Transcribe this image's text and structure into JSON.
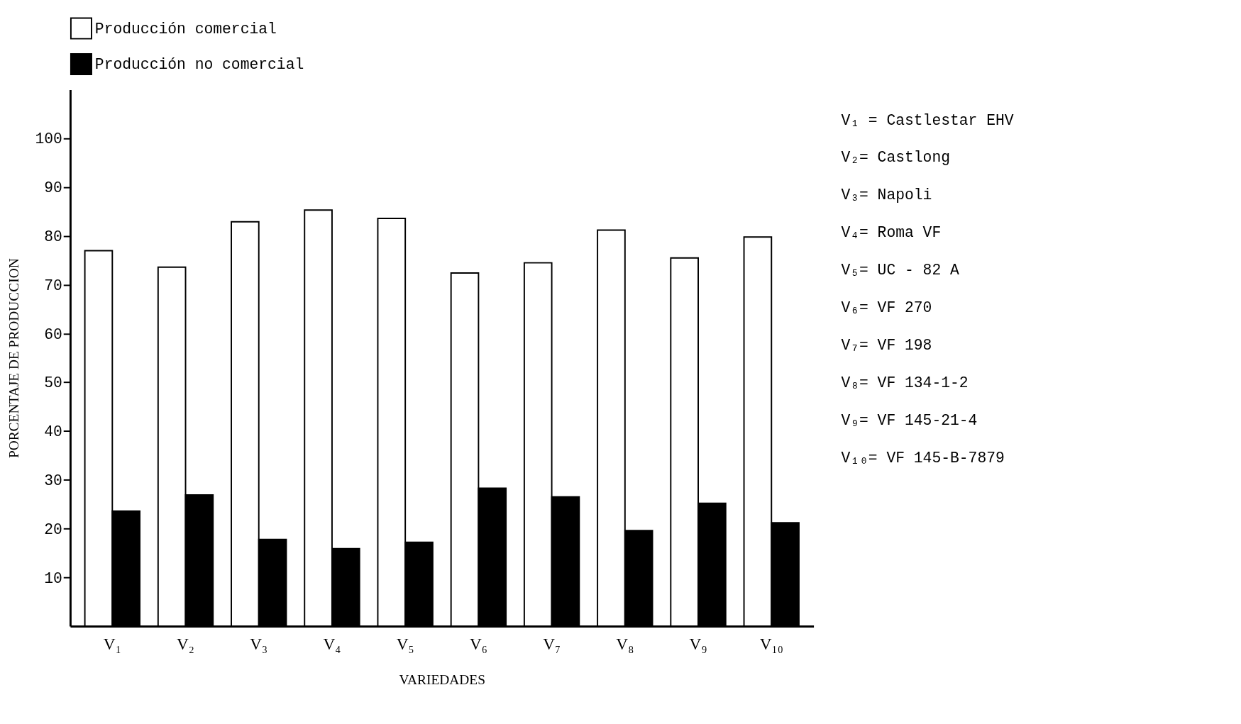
{
  "chart_data": {
    "type": "bar",
    "categories": [
      "V₁",
      "V₂",
      "V₃",
      "V₄",
      "V₅",
      "V₆",
      "V₇",
      "V₈",
      "V₉",
      "V₁₀"
    ],
    "series": [
      {
        "name": "Producción comercial",
        "color": "#ffffff",
        "values": [
          77.0,
          73.6,
          82.9,
          85.3,
          83.6,
          72.4,
          74.5,
          81.2,
          75.5,
          79.8
        ]
      },
      {
        "name": "Producción no comercial",
        "color": "#000000",
        "values": [
          23.6,
          26.9,
          17.8,
          15.9,
          17.2,
          28.3,
          26.5,
          19.6,
          25.2,
          21.2
        ]
      }
    ],
    "xlabel": "VARIEDADES",
    "ylabel": "PORCENTAJE DE PRODUCCION",
    "ylim": [
      0,
      110
    ],
    "yticks": [
      10,
      20,
      30,
      40,
      50,
      60,
      70,
      80,
      90,
      100
    ],
    "grid": false,
    "legend": "top",
    "annotations": [
      "V₁ = Castlestar EHV",
      "V₂= Castlong",
      "V₃= Napoli",
      "V₄= Roma VF",
      "V₅= UC - 82 A",
      "V₆= VF 270",
      "V₇= VF 198",
      "V₈= VF 134-1-2",
      "V₉= VF 145-21-4",
      "V₁₀= VF 145-B-7879"
    ]
  }
}
